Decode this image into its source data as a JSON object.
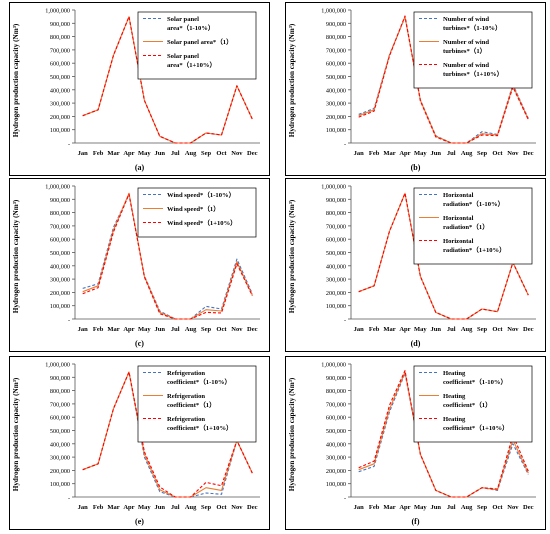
{
  "chart_data": [
    {
      "type": "line",
      "panel_label": "(a)",
      "ylabel": "Hydrogen production capacity (Nm³)",
      "ylim": [
        0,
        1000000
      ],
      "yticks": [
        "-",
        "100,000",
        "200,000",
        "300,000",
        "400,000",
        "500,000",
        "600,000",
        "700,000",
        "800,000",
        "900,000",
        "1,000,000"
      ],
      "categories": [
        "Jan",
        "Feb",
        "Mar",
        "Apr",
        "May",
        "Jun",
        "Jul",
        "Aug",
        "Sep",
        "Oct",
        "Nov",
        "Dec"
      ],
      "legend_position": "top-right",
      "series": [
        {
          "name": "Solar panel area*（1-10%）",
          "color": "#4472C4",
          "dash": "dashed",
          "values": [
            205000,
            250000,
            660000,
            950000,
            320000,
            50000,
            0,
            0,
            75000,
            60000,
            430000,
            180000
          ]
        },
        {
          "name": "Solar panel area*（1）",
          "color": "#ED7D31",
          "dash": "solid",
          "values": [
            205000,
            250000,
            660000,
            950000,
            320000,
            50000,
            0,
            0,
            75000,
            60000,
            430000,
            180000
          ]
        },
        {
          "name": "Solar panel area*（1+10%）",
          "color": "#FF0000",
          "dash": "dashed",
          "values": [
            205000,
            250000,
            660000,
            950000,
            320000,
            50000,
            0,
            0,
            75000,
            60000,
            430000,
            180000
          ]
        }
      ]
    },
    {
      "type": "line",
      "panel_label": "(b)",
      "ylabel": "Hydrogen production capacity (Nm³)",
      "ylim": [
        0,
        1000000
      ],
      "yticks": [
        "-",
        "100,000",
        "200,000",
        "300,000",
        "400,000",
        "500,000",
        "600,000",
        "700,000",
        "800,000",
        "900,000",
        "1,000,000"
      ],
      "categories": [
        "Jan",
        "Feb",
        "Mar",
        "Apr",
        "May",
        "Jun",
        "Jul",
        "Aug",
        "Sep",
        "Oct",
        "Nov",
        "Dec"
      ],
      "legend_position": "top-right",
      "series": [
        {
          "name": "Number of wind turbines*（1-10%）",
          "color": "#4472C4",
          "dash": "dashed",
          "values": [
            215000,
            260000,
            665000,
            945000,
            325000,
            55000,
            0,
            0,
            85000,
            65000,
            440000,
            185000
          ]
        },
        {
          "name": "Number of wind turbines*（1）",
          "color": "#ED7D31",
          "dash": "solid",
          "values": [
            205000,
            250000,
            660000,
            950000,
            320000,
            50000,
            0,
            0,
            70000,
            60000,
            430000,
            180000
          ]
        },
        {
          "name": "Number of wind turbines*（1+10%）",
          "color": "#FF0000",
          "dash": "dashed",
          "values": [
            195000,
            240000,
            655000,
            955000,
            315000,
            45000,
            0,
            0,
            60000,
            55000,
            420000,
            175000
          ]
        }
      ]
    },
    {
      "type": "line",
      "panel_label": "(c)",
      "ylabel": "Hydrogen production capacity (Nm³)",
      "ylim": [
        0,
        1000000
      ],
      "yticks": [
        "-",
        "100,000",
        "200,000",
        "300,000",
        "400,000",
        "500,000",
        "600,000",
        "700,000",
        "800,000",
        "900,000",
        "1,000,000"
      ],
      "categories": [
        "Jan",
        "Feb",
        "Mar",
        "Apr",
        "May",
        "Jun",
        "Jul",
        "Aug",
        "Sep",
        "Oct",
        "Nov",
        "Dec"
      ],
      "legend_position": "top-right",
      "series": [
        {
          "name": "Wind speed*（1-10%）",
          "color": "#4472C4",
          "dash": "dashed",
          "values": [
            230000,
            265000,
            690000,
            935000,
            325000,
            60000,
            0,
            0,
            95000,
            75000,
            450000,
            190000
          ]
        },
        {
          "name": "Wind speed*（1）",
          "color": "#ED7D31",
          "dash": "solid",
          "values": [
            205000,
            250000,
            670000,
            945000,
            320000,
            50000,
            0,
            0,
            70000,
            60000,
            430000,
            180000
          ]
        },
        {
          "name": "Wind speed*（1+10%）",
          "color": "#FF0000",
          "dash": "dashed",
          "values": [
            190000,
            235000,
            655000,
            940000,
            315000,
            40000,
            0,
            0,
            50000,
            45000,
            415000,
            175000
          ]
        }
      ]
    },
    {
      "type": "line",
      "panel_label": "(d)",
      "ylabel": "Hydrogen production capacity (Nm³)",
      "ylim": [
        0,
        1000000
      ],
      "yticks": [
        "-",
        "100,000",
        "200,000",
        "300,000",
        "400,000",
        "500,000",
        "600,000",
        "700,000",
        "800,000",
        "900,000",
        "1,000,000"
      ],
      "categories": [
        "Jan",
        "Feb",
        "Mar",
        "Apr",
        "May",
        "Jun",
        "Jul",
        "Aug",
        "Sep",
        "Oct",
        "Nov",
        "Dec"
      ],
      "legend_position": "top-right",
      "series": [
        {
          "name": "Horizontal radiation*（1-10%）",
          "color": "#4472C4",
          "dash": "dashed",
          "values": [
            205000,
            250000,
            660000,
            945000,
            320000,
            50000,
            0,
            0,
            75000,
            55000,
            425000,
            180000
          ]
        },
        {
          "name": "Horizontal radiation*（1）",
          "color": "#ED7D31",
          "dash": "solid",
          "values": [
            205000,
            250000,
            660000,
            945000,
            320000,
            50000,
            0,
            0,
            75000,
            55000,
            425000,
            180000
          ]
        },
        {
          "name": "Horizontal radiation*（1+10%）",
          "color": "#FF0000",
          "dash": "dashed",
          "values": [
            205000,
            250000,
            660000,
            945000,
            320000,
            50000,
            0,
            0,
            75000,
            55000,
            425000,
            180000
          ]
        }
      ]
    },
    {
      "type": "line",
      "panel_label": "(e)",
      "ylabel": "Hydrogen production capacity (Nm³)",
      "ylim": [
        0,
        1000000
      ],
      "yticks": [
        "-",
        "100,000",
        "200,000",
        "300,000",
        "400,000",
        "500,000",
        "600,000",
        "700,000",
        "800,000",
        "900,000",
        "1,000,000"
      ],
      "categories": [
        "Jan",
        "Feb",
        "Mar",
        "Apr",
        "May",
        "Jun",
        "Jul",
        "Aug",
        "Sep",
        "Oct",
        "Nov",
        "Dec"
      ],
      "legend_position": "top-right",
      "series": [
        {
          "name": "Refrigeration coefficient*（1-10%）",
          "color": "#4472C4",
          "dash": "dashed",
          "values": [
            205000,
            250000,
            665000,
            940000,
            300000,
            40000,
            0,
            0,
            30000,
            20000,
            425000,
            180000
          ]
        },
        {
          "name": "Refrigeration coefficient*（1）",
          "color": "#ED7D31",
          "dash": "solid",
          "values": [
            205000,
            250000,
            665000,
            940000,
            320000,
            55000,
            0,
            0,
            70000,
            50000,
            425000,
            180000
          ]
        },
        {
          "name": "Refrigeration coefficient*（1+10%）",
          "color": "#FF0000",
          "dash": "dashed",
          "values": [
            205000,
            250000,
            665000,
            940000,
            340000,
            75000,
            0,
            0,
            110000,
            85000,
            425000,
            180000
          ]
        }
      ]
    },
    {
      "type": "line",
      "panel_label": "(f)",
      "ylabel": "Hydrogen production capacity (Nm³)",
      "ylim": [
        0,
        1000000
      ],
      "yticks": [
        "-",
        "100,000",
        "200,000",
        "300,000",
        "400,000",
        "500,000",
        "600,000",
        "700,000",
        "800,000",
        "900,000",
        "1,000,000"
      ],
      "categories": [
        "Jan",
        "Feb",
        "Mar",
        "Apr",
        "May",
        "Jun",
        "Jul",
        "Aug",
        "Sep",
        "Oct",
        "Nov",
        "Dec"
      ],
      "legend_position": "top-right",
      "series": [
        {
          "name": "Heating coefficient*（1-10%）",
          "color": "#4472C4",
          "dash": "dashed",
          "values": [
            190000,
            230000,
            640000,
            930000,
            320000,
            50000,
            0,
            0,
            70000,
            50000,
            400000,
            170000
          ]
        },
        {
          "name": "Heating coefficient*（1）",
          "color": "#ED7D31",
          "dash": "solid",
          "values": [
            205000,
            250000,
            660000,
            940000,
            320000,
            50000,
            0,
            0,
            70000,
            55000,
            430000,
            180000
          ]
        },
        {
          "name": "Heating coefficient*（1+10%）",
          "color": "#FF0000",
          "dash": "dashed",
          "values": [
            220000,
            270000,
            690000,
            950000,
            320000,
            50000,
            0,
            0,
            70000,
            60000,
            465000,
            195000
          ]
        }
      ]
    }
  ]
}
